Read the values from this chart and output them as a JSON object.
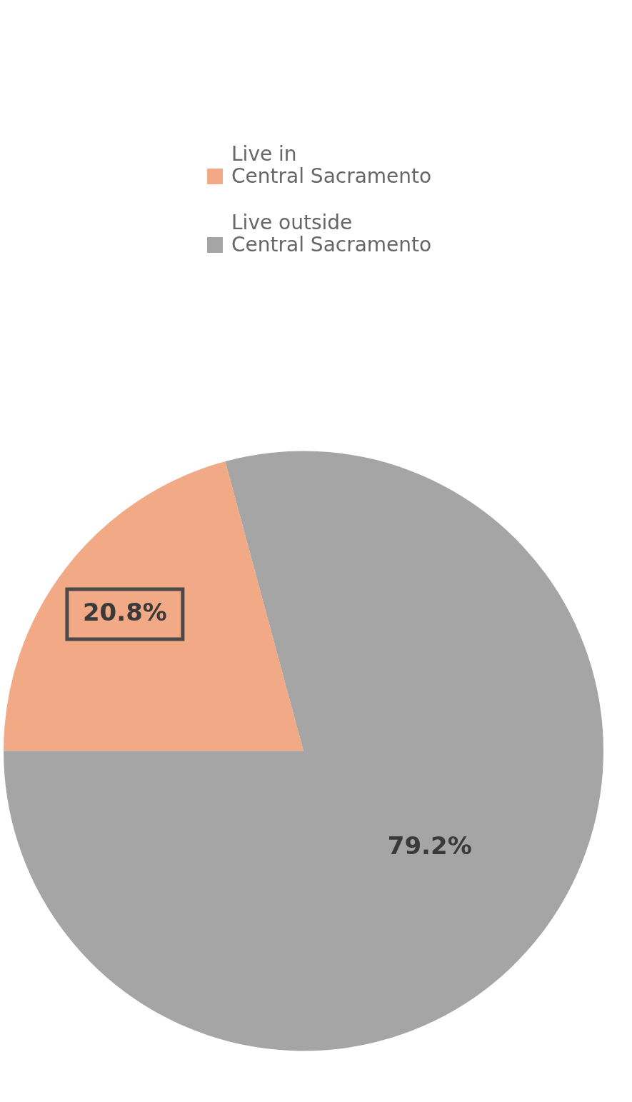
{
  "chart_data": {
    "type": "pie",
    "categories": [
      "Live in\nCentral Sacramento",
      "Live outside\nCentral Sacramento"
    ],
    "values": [
      20.8,
      79.2
    ],
    "colors": [
      "#f2a985",
      "#a5a5a5"
    ],
    "value_labels": [
      "20.8%",
      "79.2%"
    ],
    "legend": "top"
  }
}
